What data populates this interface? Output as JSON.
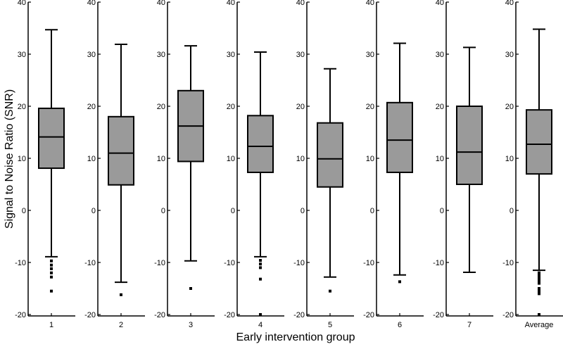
{
  "chart_data": {
    "type": "box",
    "ylabel": "Signal to Noise Ratio (SNR)",
    "xlabel": "Early intervention group",
    "ylim": [
      -20,
      40
    ],
    "yticks": [
      -20,
      -10,
      0,
      10,
      20,
      30,
      40
    ],
    "groups": [
      {
        "label": "1",
        "whisker_low": -8.9,
        "q1": 8.1,
        "median": 14.1,
        "q3": 19.6,
        "whisker_high": 34.7,
        "outliers": [
          -9.7,
          -10.5,
          -11.2,
          -12.0,
          -12.8,
          -15.5
        ]
      },
      {
        "label": "2",
        "whisker_low": -13.8,
        "q1": 4.9,
        "median": 11.0,
        "q3": 18.0,
        "whisker_high": 31.9,
        "outliers": [
          -16.2
        ]
      },
      {
        "label": "3",
        "whisker_low": -9.7,
        "q1": 9.4,
        "median": 16.2,
        "q3": 23.0,
        "whisker_high": 31.6,
        "outliers": [
          -15.0
        ]
      },
      {
        "label": "4",
        "whisker_low": -8.9,
        "q1": 7.3,
        "median": 12.3,
        "q3": 18.2,
        "whisker_high": 30.4,
        "outliers": [
          -9.6,
          -10.3,
          -11.0,
          -13.2,
          -20.0
        ]
      },
      {
        "label": "5",
        "whisker_low": -12.8,
        "q1": 4.5,
        "median": 9.9,
        "q3": 16.8,
        "whisker_high": 27.2,
        "outliers": [
          -15.5
        ]
      },
      {
        "label": "6",
        "whisker_low": -12.4,
        "q1": 7.3,
        "median": 13.5,
        "q3": 20.7,
        "whisker_high": 32.1,
        "outliers": [
          -13.7
        ]
      },
      {
        "label": "7",
        "whisker_low": -11.9,
        "q1": 5.0,
        "median": 11.2,
        "q3": 20.0,
        "whisker_high": 31.3,
        "outliers": []
      },
      {
        "label": "Average",
        "whisker_low": -11.5,
        "q1": 7.0,
        "median": 12.7,
        "q3": 19.3,
        "whisker_high": 34.8,
        "outliers": [
          -12.0,
          -12.5,
          -13.0,
          -13.5,
          -14.0,
          -15.0,
          -15.5,
          -16.0,
          -20.0
        ]
      }
    ],
    "colors": {
      "box_fill": "#9a9a9a",
      "stroke": "#000000"
    }
  }
}
